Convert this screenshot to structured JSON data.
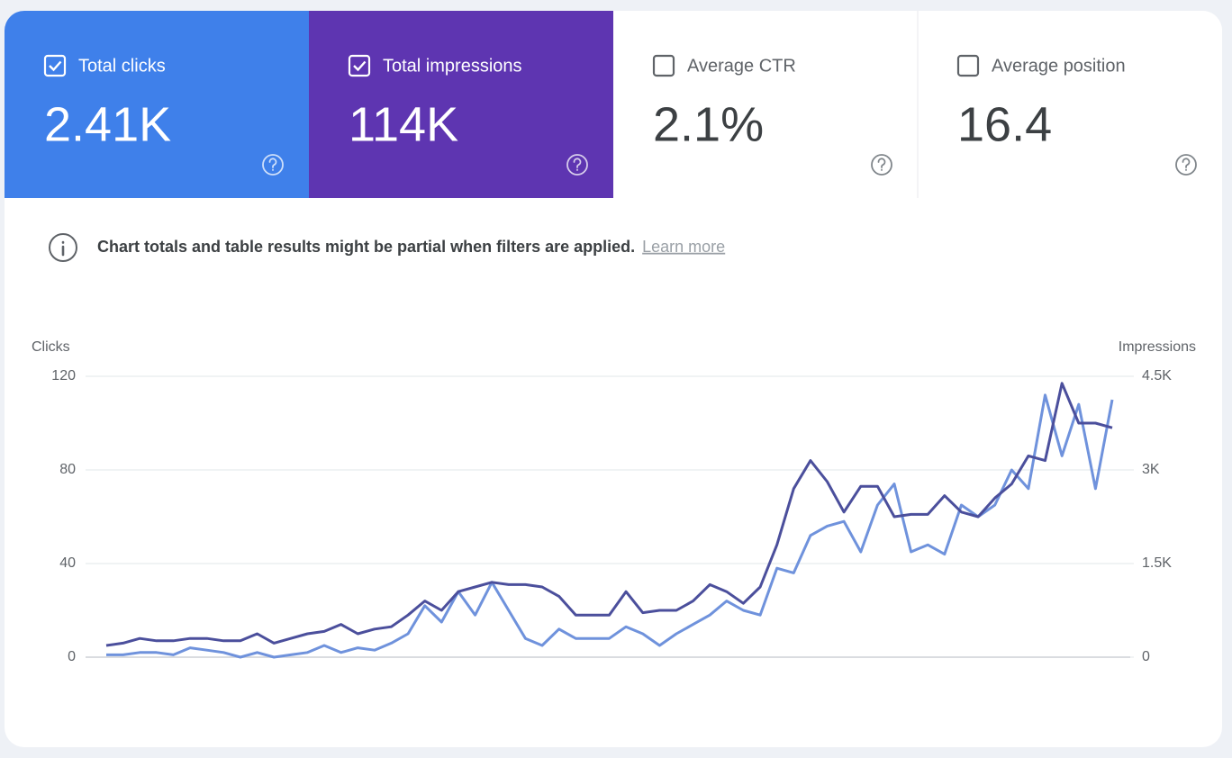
{
  "cards": [
    {
      "label": "Total clicks",
      "value": "2.41K",
      "checked": true,
      "color": "#3f80ea"
    },
    {
      "label": "Total impressions",
      "value": "114K",
      "checked": true,
      "color": "#5e35b1"
    },
    {
      "label": "Average CTR",
      "value": "2.1%",
      "checked": false,
      "color": "#ffffff"
    },
    {
      "label": "Average position",
      "value": "16.4",
      "checked": false,
      "color": "#ffffff"
    }
  ],
  "notice": {
    "text": "Chart totals and table results might be partial when filters are applied.",
    "link": "Learn more"
  },
  "chart_data": {
    "type": "line",
    "ylabel": "Clicks",
    "y2label": "Impressions",
    "categories": [
      null,
      null,
      null,
      null,
      null,
      null,
      null,
      null,
      null,
      null,
      null,
      null,
      null,
      null,
      null,
      null,
      null,
      null,
      null,
      null,
      null,
      null,
      null,
      null,
      null,
      null,
      null,
      null,
      null,
      null,
      null,
      null,
      null,
      null,
      null,
      null,
      null,
      null,
      null,
      null,
      null,
      null,
      null,
      null,
      null,
      null,
      null,
      null,
      null,
      null,
      null,
      null,
      null,
      null,
      null,
      null,
      null,
      null,
      null,
      null,
      null
    ],
    "ylim": [
      0,
      120
    ],
    "yticks": [
      0,
      40,
      80,
      120
    ],
    "y2lim": [
      0,
      4500
    ],
    "y2ticks": [
      0,
      {
        "value": 1500,
        "label": "1.5K"
      },
      {
        "value": 3000,
        "label": "3K"
      },
      {
        "value": 4500,
        "label": "4.5K"
      }
    ],
    "grid": true,
    "series": [
      {
        "name": "Clicks",
        "color": "#6f92dc",
        "values": [
          1,
          1,
          2,
          2,
          1,
          4,
          3,
          2,
          0,
          2,
          0,
          1,
          2,
          5,
          2,
          4,
          3,
          6,
          10,
          22,
          15,
          28,
          18,
          32,
          20,
          8,
          5,
          12,
          8,
          8,
          8,
          13,
          10,
          5,
          10,
          14,
          18,
          24,
          20,
          18,
          38,
          36,
          52,
          56,
          58,
          45,
          65,
          74,
          45,
          48,
          44,
          65,
          60,
          65,
          80,
          72,
          112,
          86,
          108,
          72,
          110
        ]
      },
      {
        "name": "Impressions",
        "color": "#4b4f9c",
        "axis": "y2",
        "values": [
          188,
          225,
          300,
          263,
          263,
          300,
          300,
          263,
          263,
          375,
          225,
          300,
          375,
          413,
          525,
          375,
          450,
          488,
          675,
          900,
          750,
          1050,
          1125,
          1200,
          1163,
          1163,
          1125,
          975,
          675,
          675,
          675,
          1050,
          713,
          750,
          750,
          900,
          1163,
          1050,
          863,
          1125,
          1800,
          2700,
          3150,
          2813,
          2325,
          2738,
          2738,
          2250,
          2288,
          2288,
          2588,
          2325,
          2250,
          2550,
          2775,
          3225,
          3150,
          4388,
          3750,
          3750,
          3675
        ]
      }
    ]
  }
}
